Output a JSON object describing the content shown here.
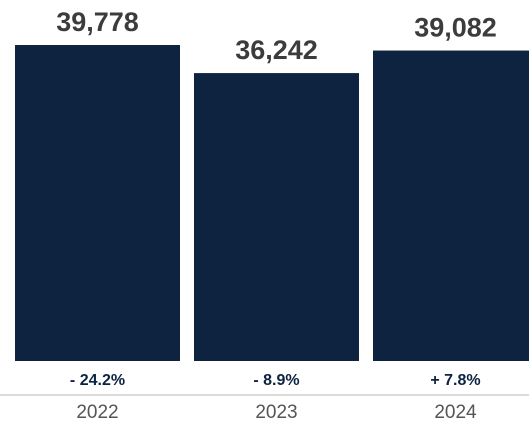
{
  "chart_data": {
    "type": "bar",
    "categories": [
      "2022",
      "2023",
      "2024"
    ],
    "values": [
      39778,
      36242,
      39082
    ],
    "value_labels": [
      "39,778",
      "36,242",
      "39,082"
    ],
    "change_labels": [
      "- 24.2%",
      "- 8.9%",
      "+ 7.8%"
    ],
    "title": "",
    "xlabel": "",
    "ylabel": "",
    "ylim": [
      0,
      39778
    ],
    "grid": false,
    "legend": "none",
    "colors": {
      "bar": "#0d2340",
      "value_text": "#3c3c3c",
      "change_text": "#0d2340",
      "tick_text": "#555555",
      "axis_line": "#cfcfcf"
    }
  }
}
